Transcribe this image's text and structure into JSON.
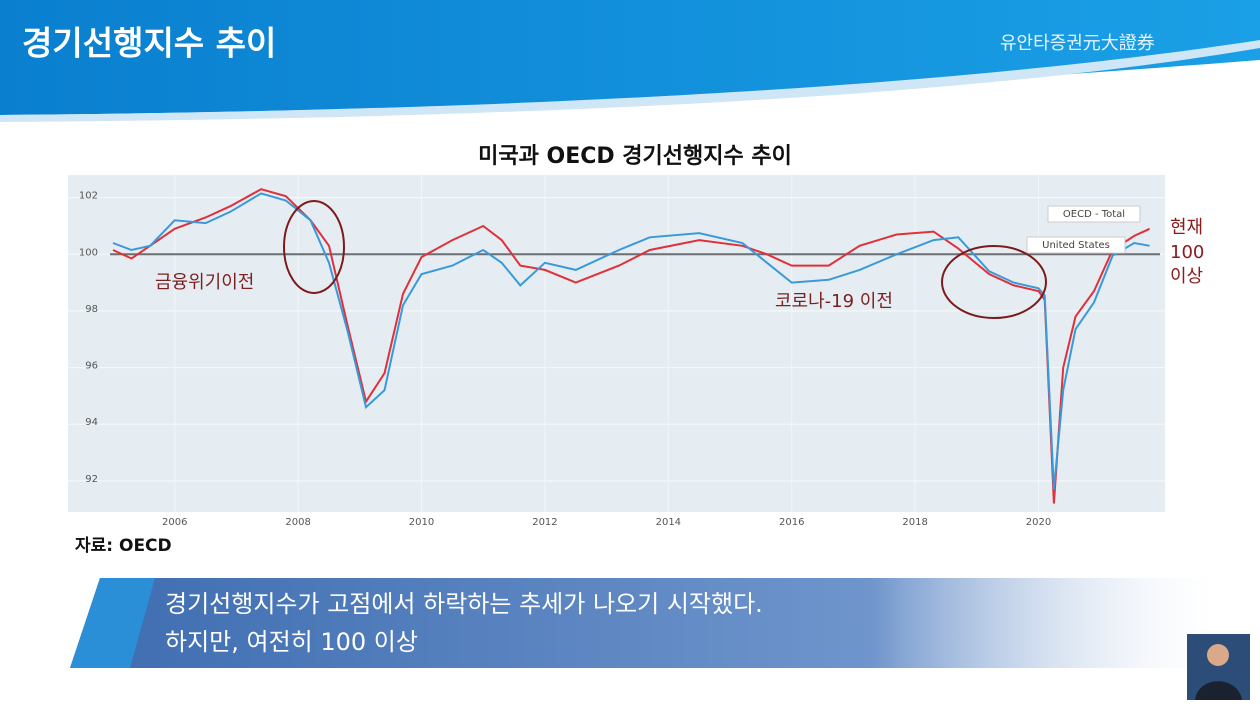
{
  "header": {
    "title": "경기선행지수 추이",
    "logo": "유안타증권元大證券"
  },
  "chart_data": {
    "type": "line",
    "title": "미국과 OECD 경기선행지수 추이",
    "x": [
      2005,
      2005.3,
      2005.6,
      2006,
      2006.5,
      2006.9,
      2007.4,
      2007.8,
      2008.2,
      2008.5,
      2008.8,
      2009.1,
      2009.4,
      2009.7,
      2010,
      2010.5,
      2011,
      2011.3,
      2011.6,
      2012,
      2012.5,
      2013.2,
      2013.7,
      2014.5,
      2015.2,
      2015.6,
      2016,
      2016.6,
      2017.1,
      2017.7,
      2018.3,
      2018.7,
      2019.2,
      2019.6,
      2020,
      2020.1,
      2020.25,
      2020.4,
      2020.6,
      2020.9,
      2021.2,
      2021.55,
      2021.8
    ],
    "series": [
      {
        "name": "OECD - Total",
        "color": "#e0303a",
        "values": [
          100.15,
          99.85,
          100.3,
          100.9,
          101.3,
          101.7,
          102.3,
          102.05,
          101.2,
          100.3,
          97.5,
          94.8,
          95.8,
          98.6,
          99.9,
          100.5,
          101.0,
          100.5,
          99.6,
          99.45,
          99.0,
          99.6,
          100.15,
          100.5,
          100.3,
          100.0,
          99.6,
          99.6,
          100.3,
          100.7,
          100.8,
          100.2,
          99.3,
          98.9,
          98.7,
          98.4,
          91.2,
          96.0,
          97.8,
          98.7,
          100.15,
          100.65,
          100.9
        ]
      },
      {
        "name": "United States",
        "color": "#3a9ad9",
        "values": [
          100.4,
          100.15,
          100.3,
          101.2,
          101.1,
          101.5,
          102.15,
          101.9,
          101.2,
          99.7,
          97.3,
          94.6,
          95.2,
          98.2,
          99.3,
          99.6,
          100.15,
          99.7,
          98.9,
          99.7,
          99.45,
          100.15,
          100.6,
          100.75,
          100.4,
          99.7,
          99.0,
          99.1,
          99.45,
          100.0,
          100.5,
          100.6,
          99.4,
          99.0,
          98.8,
          98.55,
          91.7,
          95.2,
          97.35,
          98.3,
          99.95,
          100.4,
          100.3
        ]
      }
    ],
    "xlim": [
      2004.27,
      2022.05
    ],
    "xticks": [
      2006,
      2008,
      2010,
      2012,
      2014,
      2016,
      2018,
      2020
    ],
    "ylim": [
      90.9,
      102.8
    ],
    "yticks": [
      92,
      94,
      96,
      98,
      100,
      102
    ],
    "reference_line": 100,
    "grid": true,
    "annotations": [
      "금융위기이전",
      "코로나-19 이전"
    ],
    "side_note": [
      "현재",
      "100",
      "이상"
    ]
  },
  "source": "자료: OECD",
  "caption": [
    "경기선행지수가 고점에서 하락하는 추세가 나오기 시작했다.",
    "하지만, 여전히 100 이상"
  ]
}
